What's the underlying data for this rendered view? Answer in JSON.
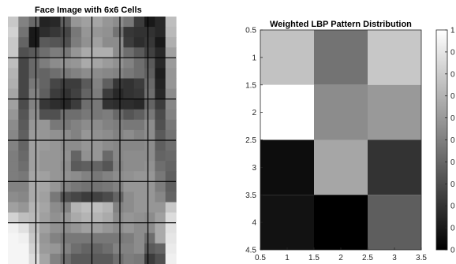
{
  "chart_data": [
    {
      "type": "heatmap",
      "title": "Face Image with 6x6 Cells",
      "rows": 24,
      "cols": 16,
      "values": [
        [
          200,
          130,
          105,
          35,
          40,
          95,
          150,
          160,
          165,
          150,
          140,
          120,
          60,
          25,
          40,
          190
        ],
        [
          210,
          115,
          25,
          45,
          55,
          70,
          120,
          150,
          150,
          145,
          115,
          55,
          50,
          50,
          40,
          185
        ],
        [
          200,
          100,
          25,
          90,
          85,
          80,
          125,
          145,
          160,
          140,
          140,
          60,
          45,
          55,
          25,
          175
        ],
        [
          200,
          80,
          90,
          110,
          125,
          120,
          150,
          170,
          175,
          175,
          140,
          110,
          90,
          65,
          40,
          160
        ],
        [
          190,
          70,
          105,
          125,
          140,
          145,
          150,
          170,
          165,
          155,
          145,
          130,
          110,
          90,
          40,
          155
        ],
        [
          180,
          70,
          105,
          100,
          110,
          120,
          130,
          140,
          140,
          135,
          130,
          120,
          110,
          95,
          30,
          150
        ],
        [
          175,
          70,
          120,
          100,
          70,
          60,
          60,
          90,
          130,
          95,
          55,
          50,
          60,
          105,
          35,
          150
        ],
        [
          165,
          70,
          130,
          95,
          60,
          50,
          65,
          100,
          125,
          60,
          40,
          50,
          55,
          110,
          40,
          140
        ],
        [
          160,
          75,
          130,
          55,
          45,
          40,
          60,
          110,
          120,
          50,
          45,
          45,
          40,
          100,
          60,
          135
        ],
        [
          150,
          85,
          140,
          80,
          80,
          110,
          110,
          120,
          120,
          125,
          105,
          85,
          95,
          120,
          75,
          130
        ],
        [
          140,
          90,
          150,
          150,
          120,
          120,
          130,
          140,
          140,
          130,
          125,
          120,
          120,
          140,
          80,
          120
        ],
        [
          135,
          95,
          155,
          150,
          145,
          140,
          130,
          150,
          145,
          140,
          130,
          140,
          130,
          140,
          90,
          115
        ],
        [
          130,
          100,
          160,
          155,
          150,
          140,
          140,
          150,
          150,
          140,
          135,
          135,
          135,
          140,
          95,
          110
        ],
        [
          125,
          105,
          160,
          150,
          150,
          145,
          100,
          145,
          150,
          105,
          135,
          140,
          140,
          140,
          100,
          105
        ],
        [
          125,
          110,
          160,
          150,
          150,
          140,
          90,
          95,
          100,
          85,
          130,
          140,
          140,
          145,
          110,
          100
        ],
        [
          125,
          120,
          165,
          160,
          150,
          145,
          140,
          130,
          120,
          130,
          140,
          145,
          150,
          150,
          120,
          95
        ],
        [
          130,
          130,
          170,
          165,
          150,
          130,
          120,
          115,
          115,
          120,
          130,
          150,
          150,
          150,
          125,
          95
        ],
        [
          140,
          135,
          170,
          160,
          120,
          80,
          70,
          60,
          65,
          75,
          100,
          140,
          150,
          150,
          135,
          100
        ],
        [
          160,
          150,
          180,
          165,
          140,
          130,
          180,
          190,
          190,
          180,
          130,
          140,
          150,
          150,
          150,
          200
        ],
        [
          210,
          190,
          185,
          160,
          145,
          150,
          170,
          180,
          180,
          170,
          140,
          150,
          145,
          140,
          160,
          220
        ],
        [
          240,
          225,
          190,
          160,
          145,
          140,
          150,
          160,
          160,
          150,
          140,
          150,
          140,
          140,
          170,
          225
        ],
        [
          245,
          240,
          200,
          150,
          130,
          120,
          120,
          120,
          120,
          120,
          120,
          125,
          140,
          110,
          170,
          230
        ],
        [
          245,
          245,
          210,
          155,
          150,
          130,
          110,
          100,
          100,
          110,
          130,
          130,
          140,
          90,
          100,
          235
        ],
        [
          245,
          245,
          220,
          165,
          130,
          110,
          90,
          90,
          90,
          90,
          110,
          125,
          120,
          60,
          80,
          240
        ]
      ]
    },
    {
      "type": "heatmap",
      "title": "Weighted LBP Pattern Distribution",
      "x_ticks": [
        "0.5",
        "1",
        "1.5",
        "2",
        "2.5",
        "3",
        "3.5"
      ],
      "y_ticks": [
        "0.5",
        "1",
        "1.5",
        "2",
        "2.5",
        "3",
        "3.5",
        "4",
        "4.5"
      ],
      "xlim": [
        0.5,
        3.5
      ],
      "ylim": [
        0.5,
        4.5
      ],
      "values": [
        [
          0.76,
          0.45,
          0.78
        ],
        [
          1.0,
          0.55,
          0.6
        ],
        [
          0.05,
          0.65,
          0.2
        ],
        [
          0.07,
          0.0,
          0.37
        ]
      ],
      "colorbar_ticks": [
        "1",
        "0",
        "0",
        "0",
        "0",
        "0",
        "0",
        "0",
        "0",
        "0",
        "0"
      ],
      "colormap": "gray"
    }
  ]
}
